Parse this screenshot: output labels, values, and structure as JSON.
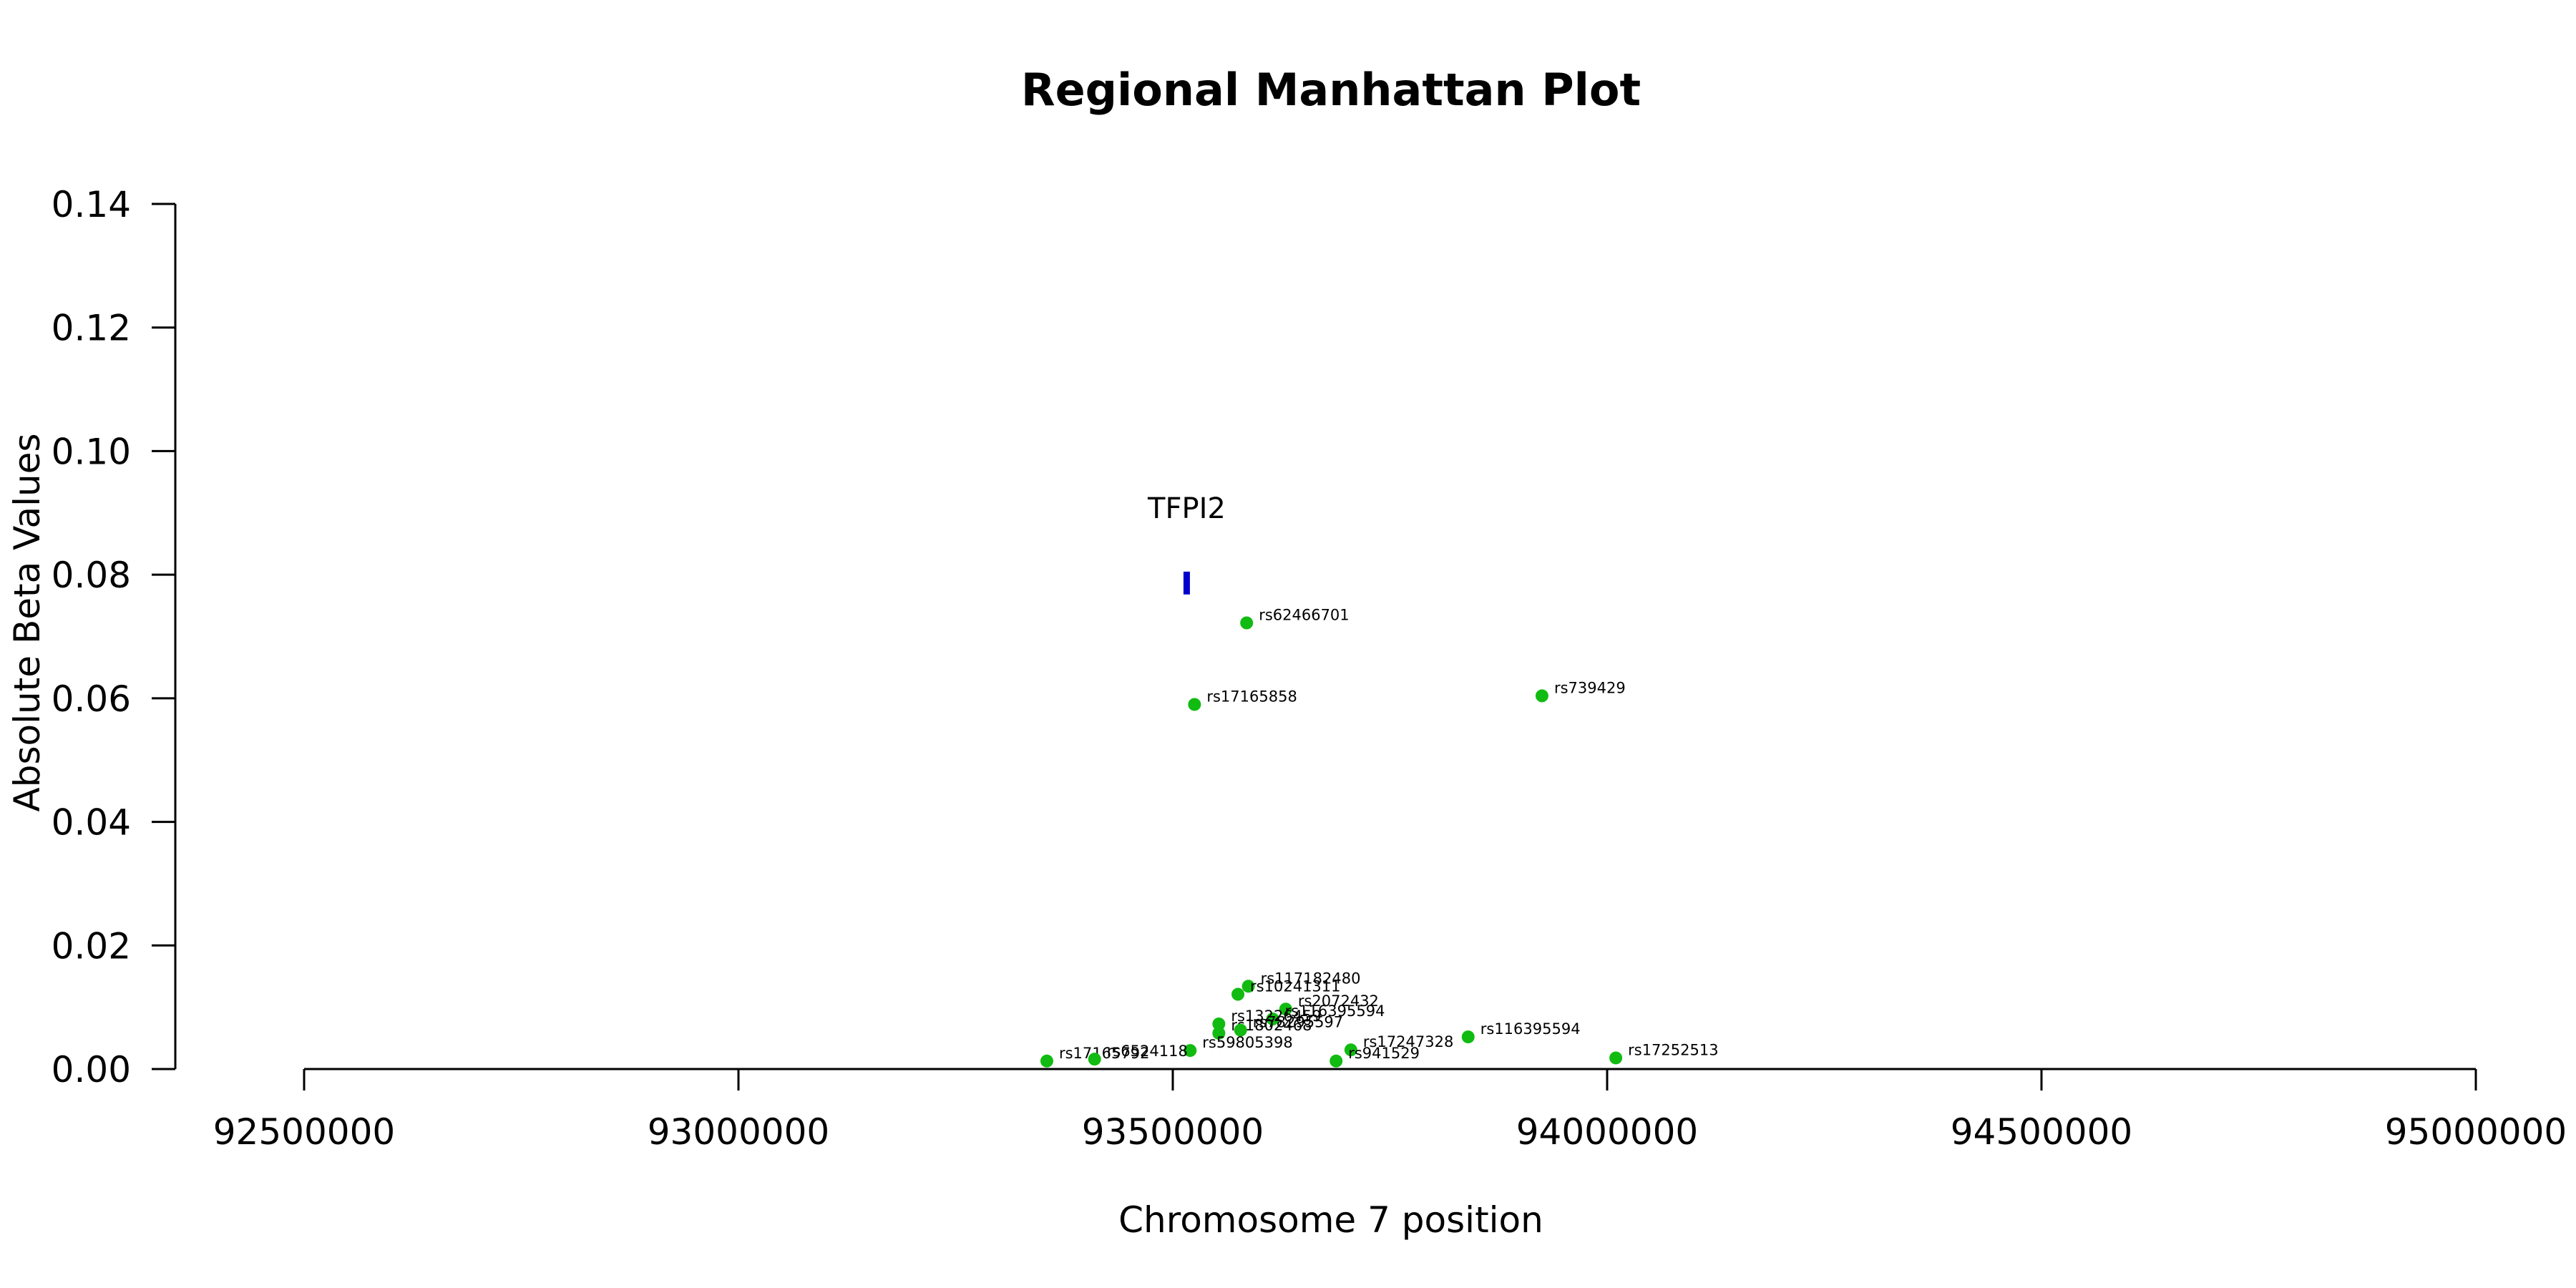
{
  "chart_data": {
    "type": "scatter",
    "title": "Regional Manhattan Plot",
    "xlabel": "Chromosome 7 position",
    "ylabel": "Absolute Beta Values",
    "xlim": [
      92350000,
      95000000
    ],
    "ylim": [
      0,
      0.14
    ],
    "x_ticks": [
      92500000,
      93000000,
      93500000,
      94000000,
      94500000,
      95000000
    ],
    "y_ticks": [
      "0.00",
      "0.02",
      "0.04",
      "0.06",
      "0.08",
      "0.10",
      "0.12",
      "0.14"
    ],
    "grid": false,
    "colors": {
      "points": "#11bb11",
      "gene": "#0000cc"
    },
    "gene": {
      "name": "TFPI2",
      "x": 93516000,
      "y_low": 0.0768,
      "y_high": 0.0805
    },
    "points": [
      {
        "id": "rs62466701",
        "x": 93585000,
        "y": 0.0722
      },
      {
        "id": "rs17165858",
        "x": 93525000,
        "y": 0.059
      },
      {
        "id": "rs739429",
        "x": 93925000,
        "y": 0.0604
      },
      {
        "id": "rs117182480",
        "x": 93587000,
        "y": 0.0134
      },
      {
        "id": "rs10241311",
        "x": 93575000,
        "y": 0.0121
      },
      {
        "id": "rs2072432",
        "x": 93630000,
        "y": 0.0097
      },
      {
        "id": "rs116395594",
        "x": 93615000,
        "y": 0.0081
      },
      {
        "id": "rs13226459",
        "x": 93553000,
        "y": 0.0073
      },
      {
        "id": "rs1802468",
        "x": 93553000,
        "y": 0.0058
      },
      {
        "id": "rs78295597",
        "x": 93578000,
        "y": 0.0063
      },
      {
        "id": "rs116395594",
        "x": 93840000,
        "y": 0.0052
      },
      {
        "id": "rs59805398",
        "x": 93520000,
        "y": 0.003
      },
      {
        "id": "rs17247328",
        "x": 93705000,
        "y": 0.0031
      },
      {
        "id": "rs941529",
        "x": 93688000,
        "y": 0.0013
      },
      {
        "id": "rs17165792",
        "x": 93355000,
        "y": 0.0013
      },
      {
        "id": "rs6524118",
        "x": 93410000,
        "y": 0.0016
      },
      {
        "id": "rs17252513",
        "x": 94010000,
        "y": 0.0018
      }
    ]
  }
}
